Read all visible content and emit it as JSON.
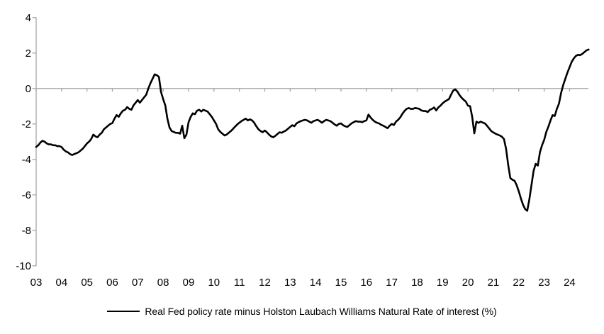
{
  "chart_data": {
    "type": "line",
    "title": "",
    "legend_label": "Real Fed policy rate minus Holston Laubach Williams Natural Rate of interest (%)",
    "legend_position": "bottom-center",
    "grid": false,
    "background": "#ffffff",
    "colors": {
      "line": "#000000",
      "axis": "#a6a6a6",
      "text": "#000000"
    },
    "ylim": [
      -10,
      4
    ],
    "y_ticks": [
      4,
      2,
      0,
      -2,
      -4,
      -6,
      -8,
      -10
    ],
    "x_tick_labels": [
      "03",
      "04",
      "05",
      "06",
      "07",
      "08",
      "09",
      "10",
      "11",
      "12",
      "13",
      "14",
      "15",
      "16",
      "17",
      "18",
      "19",
      "20",
      "21",
      "22",
      "23",
      "24"
    ],
    "x_axis_position": "at-zero",
    "frequency": "monthly",
    "start": "2003-01",
    "end": "2024-10",
    "series": [
      {
        "name": "Real Fed policy rate minus Holston Laubach Williams Natural Rate of interest (%)",
        "values": [
          -3.3,
          -3.2,
          -3.05,
          -2.95,
          -3.0,
          -3.1,
          -3.15,
          -3.15,
          -3.2,
          -3.2,
          -3.25,
          -3.25,
          -3.3,
          -3.45,
          -3.55,
          -3.6,
          -3.7,
          -3.75,
          -3.7,
          -3.65,
          -3.6,
          -3.5,
          -3.4,
          -3.25,
          -3.1,
          -3.0,
          -2.85,
          -2.6,
          -2.7,
          -2.75,
          -2.6,
          -2.5,
          -2.3,
          -2.2,
          -2.1,
          -2.0,
          -1.95,
          -1.7,
          -1.5,
          -1.6,
          -1.4,
          -1.25,
          -1.2,
          -1.05,
          -1.15,
          -1.2,
          -0.95,
          -0.8,
          -0.65,
          -0.8,
          -0.65,
          -0.5,
          -0.35,
          0.0,
          0.3,
          0.55,
          0.8,
          0.75,
          0.65,
          -0.2,
          -0.6,
          -0.95,
          -1.7,
          -2.2,
          -2.4,
          -2.45,
          -2.5,
          -2.5,
          -2.55,
          -2.1,
          -2.8,
          -2.6,
          -1.9,
          -1.6,
          -1.4,
          -1.45,
          -1.25,
          -1.2,
          -1.3,
          -1.2,
          -1.25,
          -1.3,
          -1.45,
          -1.6,
          -1.8,
          -2.0,
          -2.3,
          -2.45,
          -2.55,
          -2.65,
          -2.6,
          -2.5,
          -2.4,
          -2.28,
          -2.15,
          -2.03,
          -1.93,
          -1.84,
          -1.77,
          -1.7,
          -1.8,
          -1.74,
          -1.8,
          -1.93,
          -2.13,
          -2.3,
          -2.4,
          -2.47,
          -2.37,
          -2.47,
          -2.6,
          -2.7,
          -2.75,
          -2.67,
          -2.57,
          -2.47,
          -2.5,
          -2.43,
          -2.37,
          -2.27,
          -2.17,
          -2.07,
          -2.13,
          -1.97,
          -1.9,
          -1.84,
          -1.8,
          -1.77,
          -1.8,
          -1.87,
          -1.93,
          -1.84,
          -1.8,
          -1.77,
          -1.84,
          -1.93,
          -1.84,
          -1.77,
          -1.8,
          -1.84,
          -1.93,
          -2.03,
          -2.1,
          -2.0,
          -1.97,
          -2.07,
          -2.13,
          -2.17,
          -2.07,
          -1.97,
          -1.9,
          -1.84,
          -1.87,
          -1.87,
          -1.9,
          -1.84,
          -1.8,
          -1.47,
          -1.64,
          -1.77,
          -1.87,
          -1.93,
          -1.97,
          -2.05,
          -2.1,
          -2.17,
          -2.24,
          -2.1,
          -2.0,
          -2.06,
          -1.87,
          -1.77,
          -1.63,
          -1.43,
          -1.27,
          -1.15,
          -1.1,
          -1.15,
          -1.15,
          -1.1,
          -1.12,
          -1.15,
          -1.24,
          -1.27,
          -1.27,
          -1.33,
          -1.2,
          -1.15,
          -1.07,
          -1.24,
          -1.07,
          -0.97,
          -0.84,
          -0.74,
          -0.67,
          -0.6,
          -0.35,
          -0.12,
          -0.05,
          -0.17,
          -0.37,
          -0.52,
          -0.64,
          -0.74,
          -0.97,
          -1.0,
          -1.6,
          -2.53,
          -1.87,
          -1.94,
          -1.87,
          -1.92,
          -1.97,
          -2.1,
          -2.25,
          -2.4,
          -2.48,
          -2.55,
          -2.6,
          -2.65,
          -2.72,
          -2.85,
          -3.4,
          -4.3,
          -5.05,
          -5.15,
          -5.2,
          -5.45,
          -5.8,
          -6.2,
          -6.55,
          -6.8,
          -6.9,
          -6.25,
          -5.45,
          -4.65,
          -4.25,
          -4.35,
          -3.6,
          -3.2,
          -2.9,
          -2.45,
          -2.15,
          -1.8,
          -1.5,
          -1.55,
          -1.15,
          -0.85,
          -0.25,
          0.2,
          0.55,
          0.9,
          1.2,
          1.5,
          1.7,
          1.84,
          1.9,
          1.88,
          1.95,
          2.05,
          2.15,
          2.2
        ]
      }
    ]
  }
}
